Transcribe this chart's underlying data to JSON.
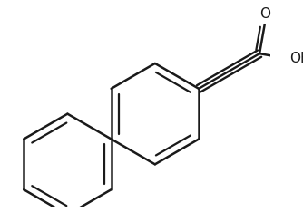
{
  "bg_color": "#ffffff",
  "line_color": "#1a1a1a",
  "line_width": 1.8,
  "figure_size": [
    3.34,
    2.34
  ],
  "dpi": 100
}
